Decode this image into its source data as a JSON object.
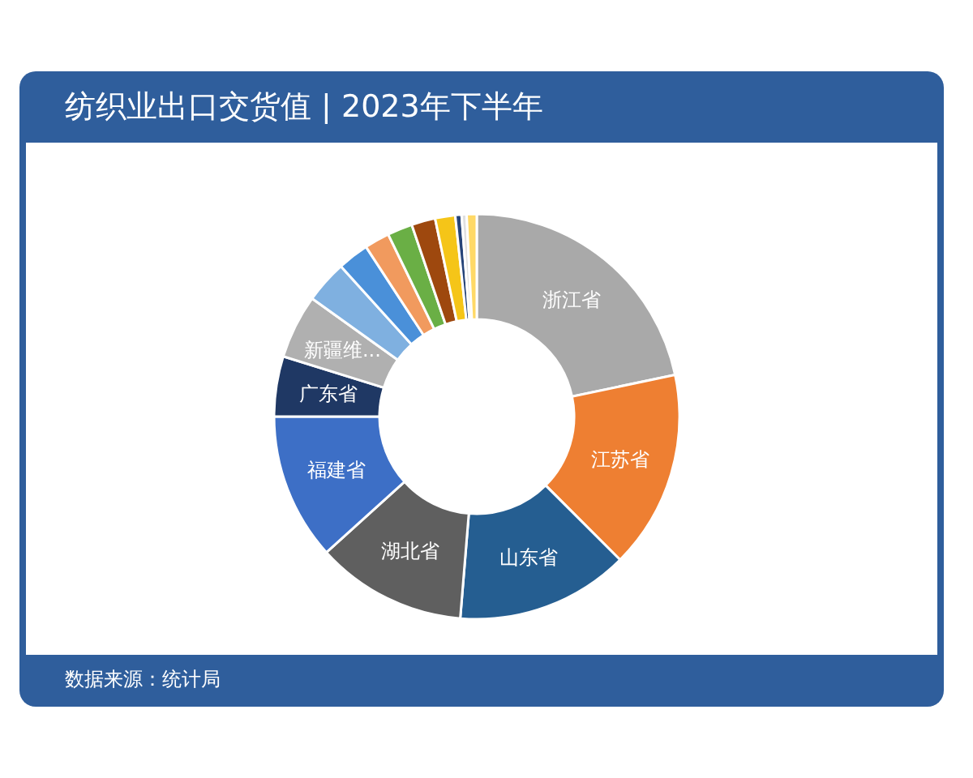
{
  "chart_data": {
    "type": "donut",
    "title": "纺织业出口交货值 | 2023年下半年",
    "categories": [
      "浙江省",
      "江苏省",
      "山东省",
      "湖北省",
      "福建省",
      "广东省",
      "新疆维...",
      null,
      null,
      null,
      null,
      null,
      null,
      null,
      null,
      null
    ],
    "values": [
      21.7,
      15.8,
      13.8,
      12,
      11.7,
      4.8,
      5.1,
      3.4,
      2.5,
      2,
      2,
      1.9,
      1.6,
      0.5,
      0.4,
      0.8
    ],
    "colors": [
      "#a9a9a9",
      "#ee7f32",
      "#255e91",
      "#5f5f5f",
      "#3d6fc6",
      "#1f3864",
      "#b0b0b0",
      "#7fb0e0",
      "#4a90d9",
      "#f19a5e",
      "#6aaf45",
      "#9e480e",
      "#f5c518",
      "#264478",
      "#e0e0e0",
      "#ffd966"
    ],
    "annotations": [
      "数据来源：统计局"
    ]
  }
}
